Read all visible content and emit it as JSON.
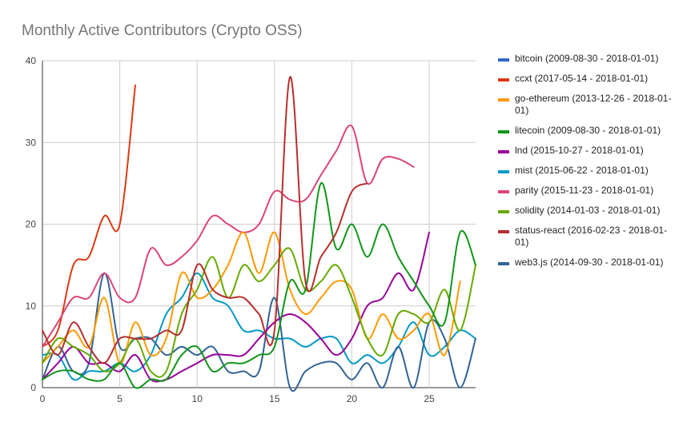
{
  "chart_data": {
    "type": "line",
    "title": "Monthly Active Contributors (Crypto OSS)",
    "xlabel": "",
    "ylabel": "",
    "xlim": [
      0,
      28
    ],
    "ylim": [
      0,
      40
    ],
    "x_ticks": [
      0,
      5,
      10,
      15,
      20,
      25
    ],
    "y_ticks": [
      0,
      10,
      20,
      30,
      40
    ],
    "grid": true,
    "legend_position": "right",
    "series": [
      {
        "name": "bitcoin (2009-08-30 - 2018-01-01)",
        "color": "#3366cc",
        "values": []
      },
      {
        "name": "ccxt (2017-05-14 - 2018-01-01)",
        "color": "#dc3912",
        "values": [
          5,
          7,
          15,
          16,
          21,
          20,
          37
        ]
      },
      {
        "name": "go-ethereum (2013-12-26 - 2018-01-01)",
        "color": "#ff9900",
        "values": [
          3,
          5,
          7,
          5,
          11,
          3,
          8,
          4,
          6,
          14,
          11,
          12,
          15,
          19,
          14,
          19,
          12,
          9,
          11,
          13,
          12,
          6,
          9,
          6,
          7,
          9,
          4,
          13
        ]
      },
      {
        "name": "litecoin (2009-08-30 - 2018-01-01)",
        "color": "#109618",
        "values": [
          1,
          2,
          2,
          1,
          1,
          3,
          0,
          1,
          1,
          4,
          5,
          2,
          3,
          3,
          4,
          5,
          13,
          12,
          25,
          17,
          20,
          16,
          20,
          16,
          13,
          10,
          8,
          19,
          15
        ]
      },
      {
        "name": "lnd (2015-10-27 - 2018-01-01)",
        "color": "#990099",
        "values": [
          1,
          3,
          5,
          3,
          3,
          2,
          4,
          1,
          1,
          2,
          3,
          4,
          4,
          4,
          6,
          8,
          9,
          8,
          6,
          4,
          6,
          10,
          11,
          14,
          12,
          19
        ]
      },
      {
        "name": "mist (2015-06-22 - 2018-01-01)",
        "color": "#0099c6",
        "values": [
          4,
          4,
          1,
          2,
          2,
          3,
          2,
          4,
          9,
          11,
          14,
          11,
          10,
          7,
          7,
          6,
          6,
          5,
          6,
          6,
          3,
          4,
          3,
          5,
          8,
          4,
          5,
          7,
          6
        ]
      },
      {
        "name": "parity (2015-11-23 - 2018-01-01)",
        "color": "#dd4477",
        "values": [
          5,
          8,
          11,
          11,
          14,
          11,
          11,
          17,
          15,
          16,
          18,
          21,
          20,
          19,
          20,
          24,
          23,
          23,
          26,
          29,
          32,
          25,
          28,
          28,
          27
        ]
      },
      {
        "name": "solidity (2014-01-03 - 2018-01-01)",
        "color": "#66aa00",
        "values": [
          3,
          6,
          5,
          4,
          2,
          3,
          6,
          2,
          2,
          9,
          12,
          16,
          11,
          15,
          13,
          15,
          17,
          12,
          13,
          15,
          11,
          6,
          4,
          9,
          9,
          8,
          12,
          7,
          15
        ]
      },
      {
        "name": "status-react (2016-02-23 - 2018-01-01)",
        "color": "#b82e2e",
        "values": [
          7,
          4,
          8,
          5,
          3,
          6,
          6,
          6,
          7,
          7,
          15,
          12,
          11,
          11,
          9,
          7,
          38,
          13,
          16,
          19,
          24,
          25
        ]
      },
      {
        "name": "web3.js (2014-09-30 - 2018-01-01)",
        "color": "#316395",
        "values": [
          1,
          5,
          2,
          3,
          14,
          5,
          6,
          6,
          4,
          5,
          4,
          5,
          2,
          2,
          2,
          11,
          0,
          2,
          3,
          3,
          1,
          3,
          0,
          5,
          0,
          8,
          6,
          0,
          6
        ]
      }
    ]
  }
}
